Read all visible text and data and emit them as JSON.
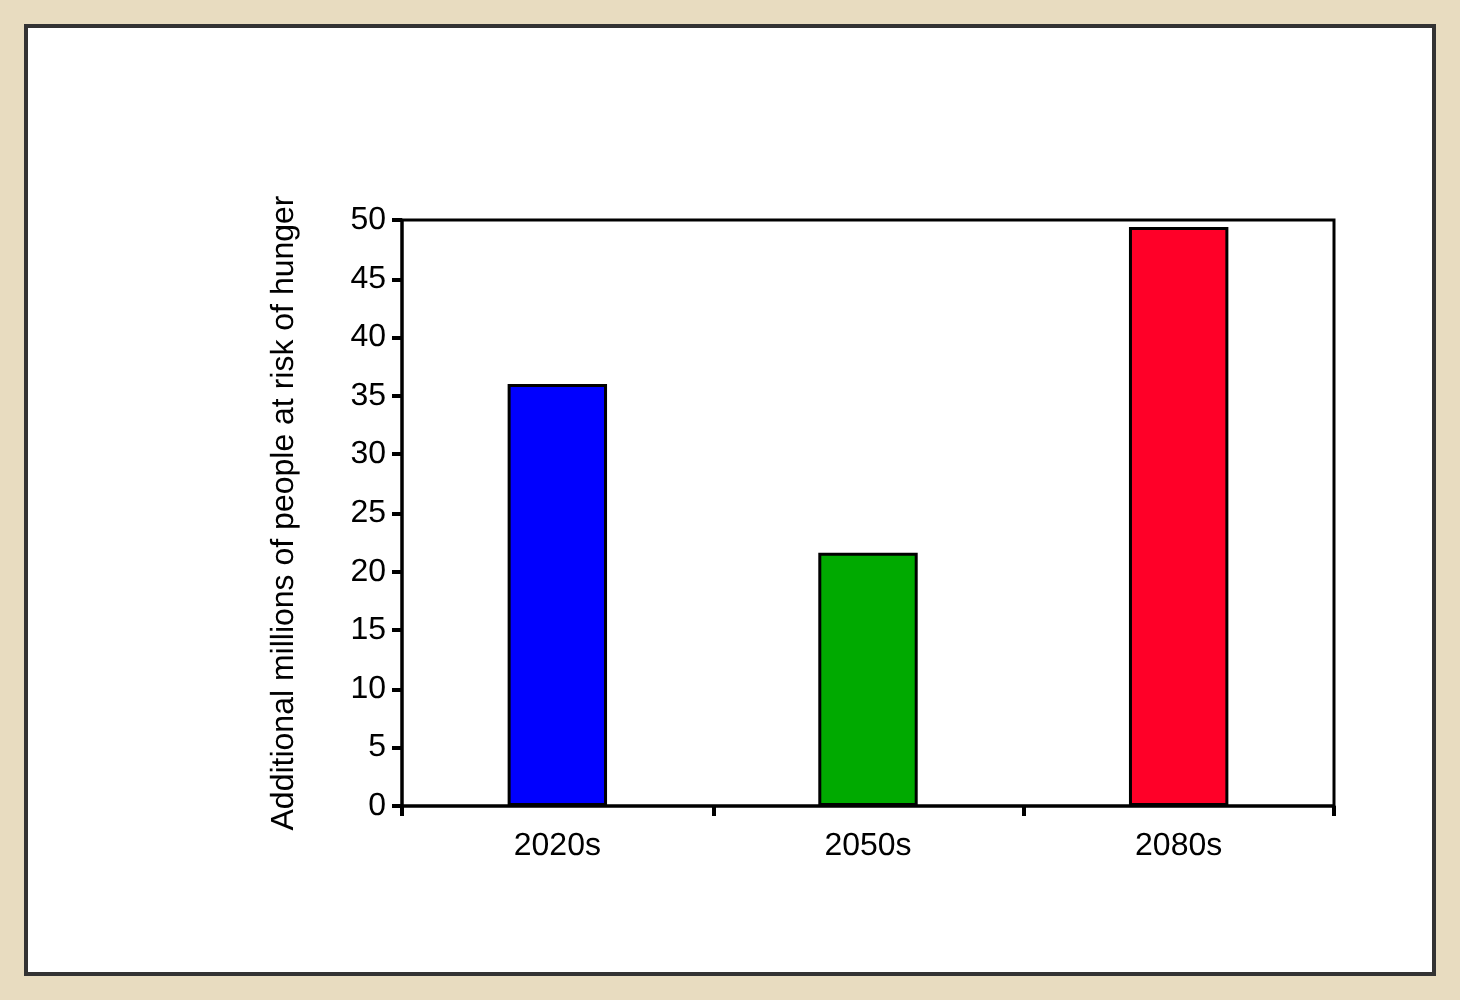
{
  "chart_data": {
    "type": "bar",
    "ylabel": "Additional millions of people at risk of hunger",
    "categories": [
      "2020s",
      "2050s",
      "2080s"
    ],
    "values": [
      36,
      21.6,
      49.4
    ],
    "colors": [
      "#0000ff",
      "#00aa00",
      "#ff0028"
    ],
    "ylim": [
      0,
      50
    ],
    "yticks": [
      0,
      5,
      10,
      15,
      20,
      25,
      30,
      35,
      40,
      45,
      50
    ],
    "grid": false
  }
}
